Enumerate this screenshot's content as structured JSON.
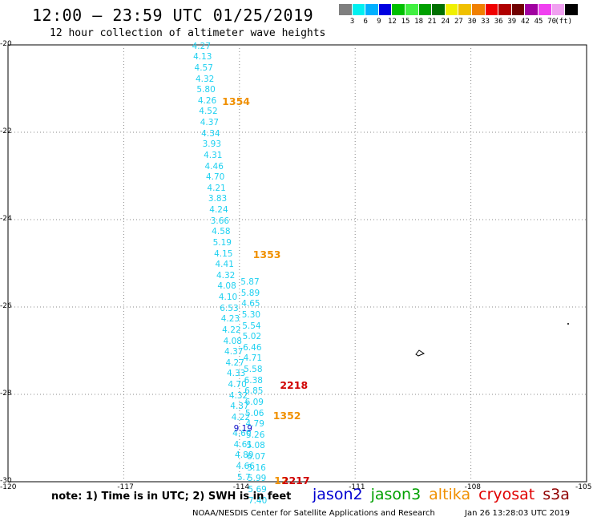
{
  "header": {
    "title": "12:00 – 23:59 UTC 01/25/2019",
    "subtitle": "12 hour collection of altimeter wave heights"
  },
  "legend": {
    "swatches": [
      {
        "color": "#7f7f7f",
        "label": ""
      },
      {
        "color": "#00f0f0",
        "label": "3"
      },
      {
        "color": "#00b0ff",
        "label": "6"
      },
      {
        "color": "#0000e0",
        "label": "9"
      },
      {
        "color": "#00c000",
        "label": "12"
      },
      {
        "color": "#40f040",
        "label": "15"
      },
      {
        "color": "#00a000",
        "label": "18"
      },
      {
        "color": "#007000",
        "label": "21"
      },
      {
        "color": "#f0f000",
        "label": "24"
      },
      {
        "color": "#f0c000",
        "label": "27"
      },
      {
        "color": "#f08000",
        "label": "30"
      },
      {
        "color": "#f00000",
        "label": "33"
      },
      {
        "color": "#b00000",
        "label": "36"
      },
      {
        "color": "#700000",
        "label": "39"
      },
      {
        "color": "#a000a0",
        "label": "42"
      },
      {
        "color": "#f040f0",
        "label": "45"
      },
      {
        "color": "#f0a0f0",
        "label": "70"
      },
      {
        "color": "#000000",
        "label": ""
      }
    ],
    "unit": "(ft)"
  },
  "axes": {
    "lat_labels": [
      "-20",
      "-22",
      "-24",
      "-26",
      "-28",
      "-30"
    ],
    "lon_labels": [
      "-120",
      "-117",
      "-114",
      "-111",
      "-108",
      "-105"
    ]
  },
  "observations": [
    {
      "v": "4.27",
      "lon": -114.98,
      "lat": -20.05
    },
    {
      "v": "4.13",
      "lon": -114.95,
      "lat": -20.3
    },
    {
      "v": "4.57",
      "lon": -114.92,
      "lat": -20.55
    },
    {
      "v": "4.32",
      "lon": -114.89,
      "lat": -20.8
    },
    {
      "v": "5.80",
      "lon": -114.86,
      "lat": -21.05
    },
    {
      "v": "4.26",
      "lon": -114.83,
      "lat": -21.3
    },
    {
      "v": "4.52",
      "lon": -114.8,
      "lat": -21.55
    },
    {
      "v": "4.37",
      "lon": -114.77,
      "lat": -21.8
    },
    {
      "v": "4.34",
      "lon": -114.74,
      "lat": -22.05
    },
    {
      "v": "3.93",
      "lon": -114.71,
      "lat": -22.3
    },
    {
      "v": "4.31",
      "lon": -114.68,
      "lat": -22.55
    },
    {
      "v": "4.46",
      "lon": -114.65,
      "lat": -22.8
    },
    {
      "v": "4.70",
      "lon": -114.62,
      "lat": -23.05
    },
    {
      "v": "4.21",
      "lon": -114.59,
      "lat": -23.3
    },
    {
      "v": "3.83",
      "lon": -114.56,
      "lat": -23.55
    },
    {
      "v": "4.24",
      "lon": -114.53,
      "lat": -23.8
    },
    {
      "v": "3.66",
      "lon": -114.5,
      "lat": -24.05
    },
    {
      "v": "4.58",
      "lon": -114.47,
      "lat": -24.3
    },
    {
      "v": "5.19",
      "lon": -114.44,
      "lat": -24.55
    },
    {
      "v": "4.15",
      "lon": -114.41,
      "lat": -24.8
    },
    {
      "v": "4.41",
      "lon": -114.38,
      "lat": -25.05
    },
    {
      "v": "4.32",
      "lon": -114.35,
      "lat": -25.3
    },
    {
      "v": "4.08",
      "lon": -114.32,
      "lat": -25.55
    },
    {
      "v": "4.10",
      "lon": -114.29,
      "lat": -25.8
    },
    {
      "v": "6.53",
      "lon": -114.26,
      "lat": -26.05
    },
    {
      "v": "4.23",
      "lon": -114.23,
      "lat": -26.3
    },
    {
      "v": "4.22",
      "lon": -114.2,
      "lat": -26.55
    },
    {
      "v": "4.08",
      "lon": -114.17,
      "lat": -26.8
    },
    {
      "v": "4.37",
      "lon": -114.14,
      "lat": -27.05
    },
    {
      "v": "4.27",
      "lon": -114.11,
      "lat": -27.3
    },
    {
      "v": "4.33",
      "lon": -114.08,
      "lat": -27.55
    },
    {
      "v": "4.70",
      "lon": -114.05,
      "lat": -27.8
    },
    {
      "v": "4.32",
      "lon": -114.02,
      "lat": -28.05
    },
    {
      "v": "4.37",
      "lon": -113.99,
      "lat": -28.3
    },
    {
      "v": "4.22",
      "lon": -113.96,
      "lat": -28.55
    },
    {
      "v": "4.60",
      "lon": -113.93,
      "lat": -28.92
    },
    {
      "v": "4.61",
      "lon": -113.9,
      "lat": -29.17
    },
    {
      "v": "4.89",
      "lon": -113.87,
      "lat": -29.42
    },
    {
      "v": "4.66",
      "lon": -113.84,
      "lat": -29.67
    },
    {
      "v": "5.7",
      "lon": -113.81,
      "lat": -29.92
    },
    {
      "v": "5.87",
      "lon": -113.72,
      "lat": -25.45
    },
    {
      "v": "5.89",
      "lon": -113.71,
      "lat": -25.7
    },
    {
      "v": "4.65",
      "lon": -113.7,
      "lat": -25.95
    },
    {
      "v": "5.30",
      "lon": -113.69,
      "lat": -26.2
    },
    {
      "v": "5.54",
      "lon": -113.68,
      "lat": -26.45
    },
    {
      "v": "5.02",
      "lon": -113.67,
      "lat": -26.7
    },
    {
      "v": "6.46",
      "lon": -113.66,
      "lat": -26.95
    },
    {
      "v": "4.71",
      "lon": -113.65,
      "lat": -27.2
    },
    {
      "v": "5.58",
      "lon": -113.64,
      "lat": -27.45
    },
    {
      "v": "6.38",
      "lon": -113.63,
      "lat": -27.7
    },
    {
      "v": "6.85",
      "lon": -113.62,
      "lat": -27.95
    },
    {
      "v": "6.09",
      "lon": -113.61,
      "lat": -28.2
    },
    {
      "v": "5.06",
      "lon": -113.6,
      "lat": -28.45
    },
    {
      "v": "4.79",
      "lon": -113.59,
      "lat": -28.7
    },
    {
      "v": "5.26",
      "lon": -113.58,
      "lat": -28.95
    },
    {
      "v": "5.08",
      "lon": -113.57,
      "lat": -29.2
    },
    {
      "v": "6.07",
      "lon": -113.56,
      "lat": -29.45
    },
    {
      "v": "5.16",
      "lon": -113.55,
      "lat": -29.7
    },
    {
      "v": "5.99",
      "lon": -113.54,
      "lat": -29.95
    },
    {
      "v": "5.69",
      "lon": -113.53,
      "lat": -30.2
    },
    {
      "v": "7.40",
      "lon": -113.52,
      "lat": -30.45
    }
  ],
  "jason2_obs": [
    {
      "v": "9.19",
      "lon": -113.9,
      "lat": -28.8
    }
  ],
  "passes": [
    {
      "label": "1354",
      "color": "#f09000",
      "lon": -114.2,
      "lat": -21.3
    },
    {
      "label": "1353",
      "color": "#f09000",
      "lon": -113.4,
      "lat": -24.8
    },
    {
      "label": "2218",
      "color": "#d00000",
      "lon": -112.7,
      "lat": -27.8
    },
    {
      "label": "1352",
      "color": "#f09000",
      "lon": -112.88,
      "lat": -28.5
    },
    {
      "label": "12",
      "color": "#f09000",
      "lon": -112.85,
      "lat": -29.98
    },
    {
      "label": "2217",
      "color": "#d00000",
      "lon": -112.65,
      "lat": -29.98
    }
  ],
  "footer": {
    "note": "note: 1) Time is in UTC; 2) SWH is in feet",
    "satellites": [
      {
        "name": "jason2",
        "color": "#0000d0"
      },
      {
        "name": "jason3",
        "color": "#00a000"
      },
      {
        "name": "altika",
        "color": "#f09000"
      },
      {
        "name": "cryosat",
        "color": "#e00000"
      },
      {
        "name": "s3a",
        "color": "#900000"
      }
    ],
    "credit": "NOAA/NESDIS Center for Satellite Applications and Research",
    "timestamp": "Jan 26 13:28:03 UTC 2019"
  }
}
